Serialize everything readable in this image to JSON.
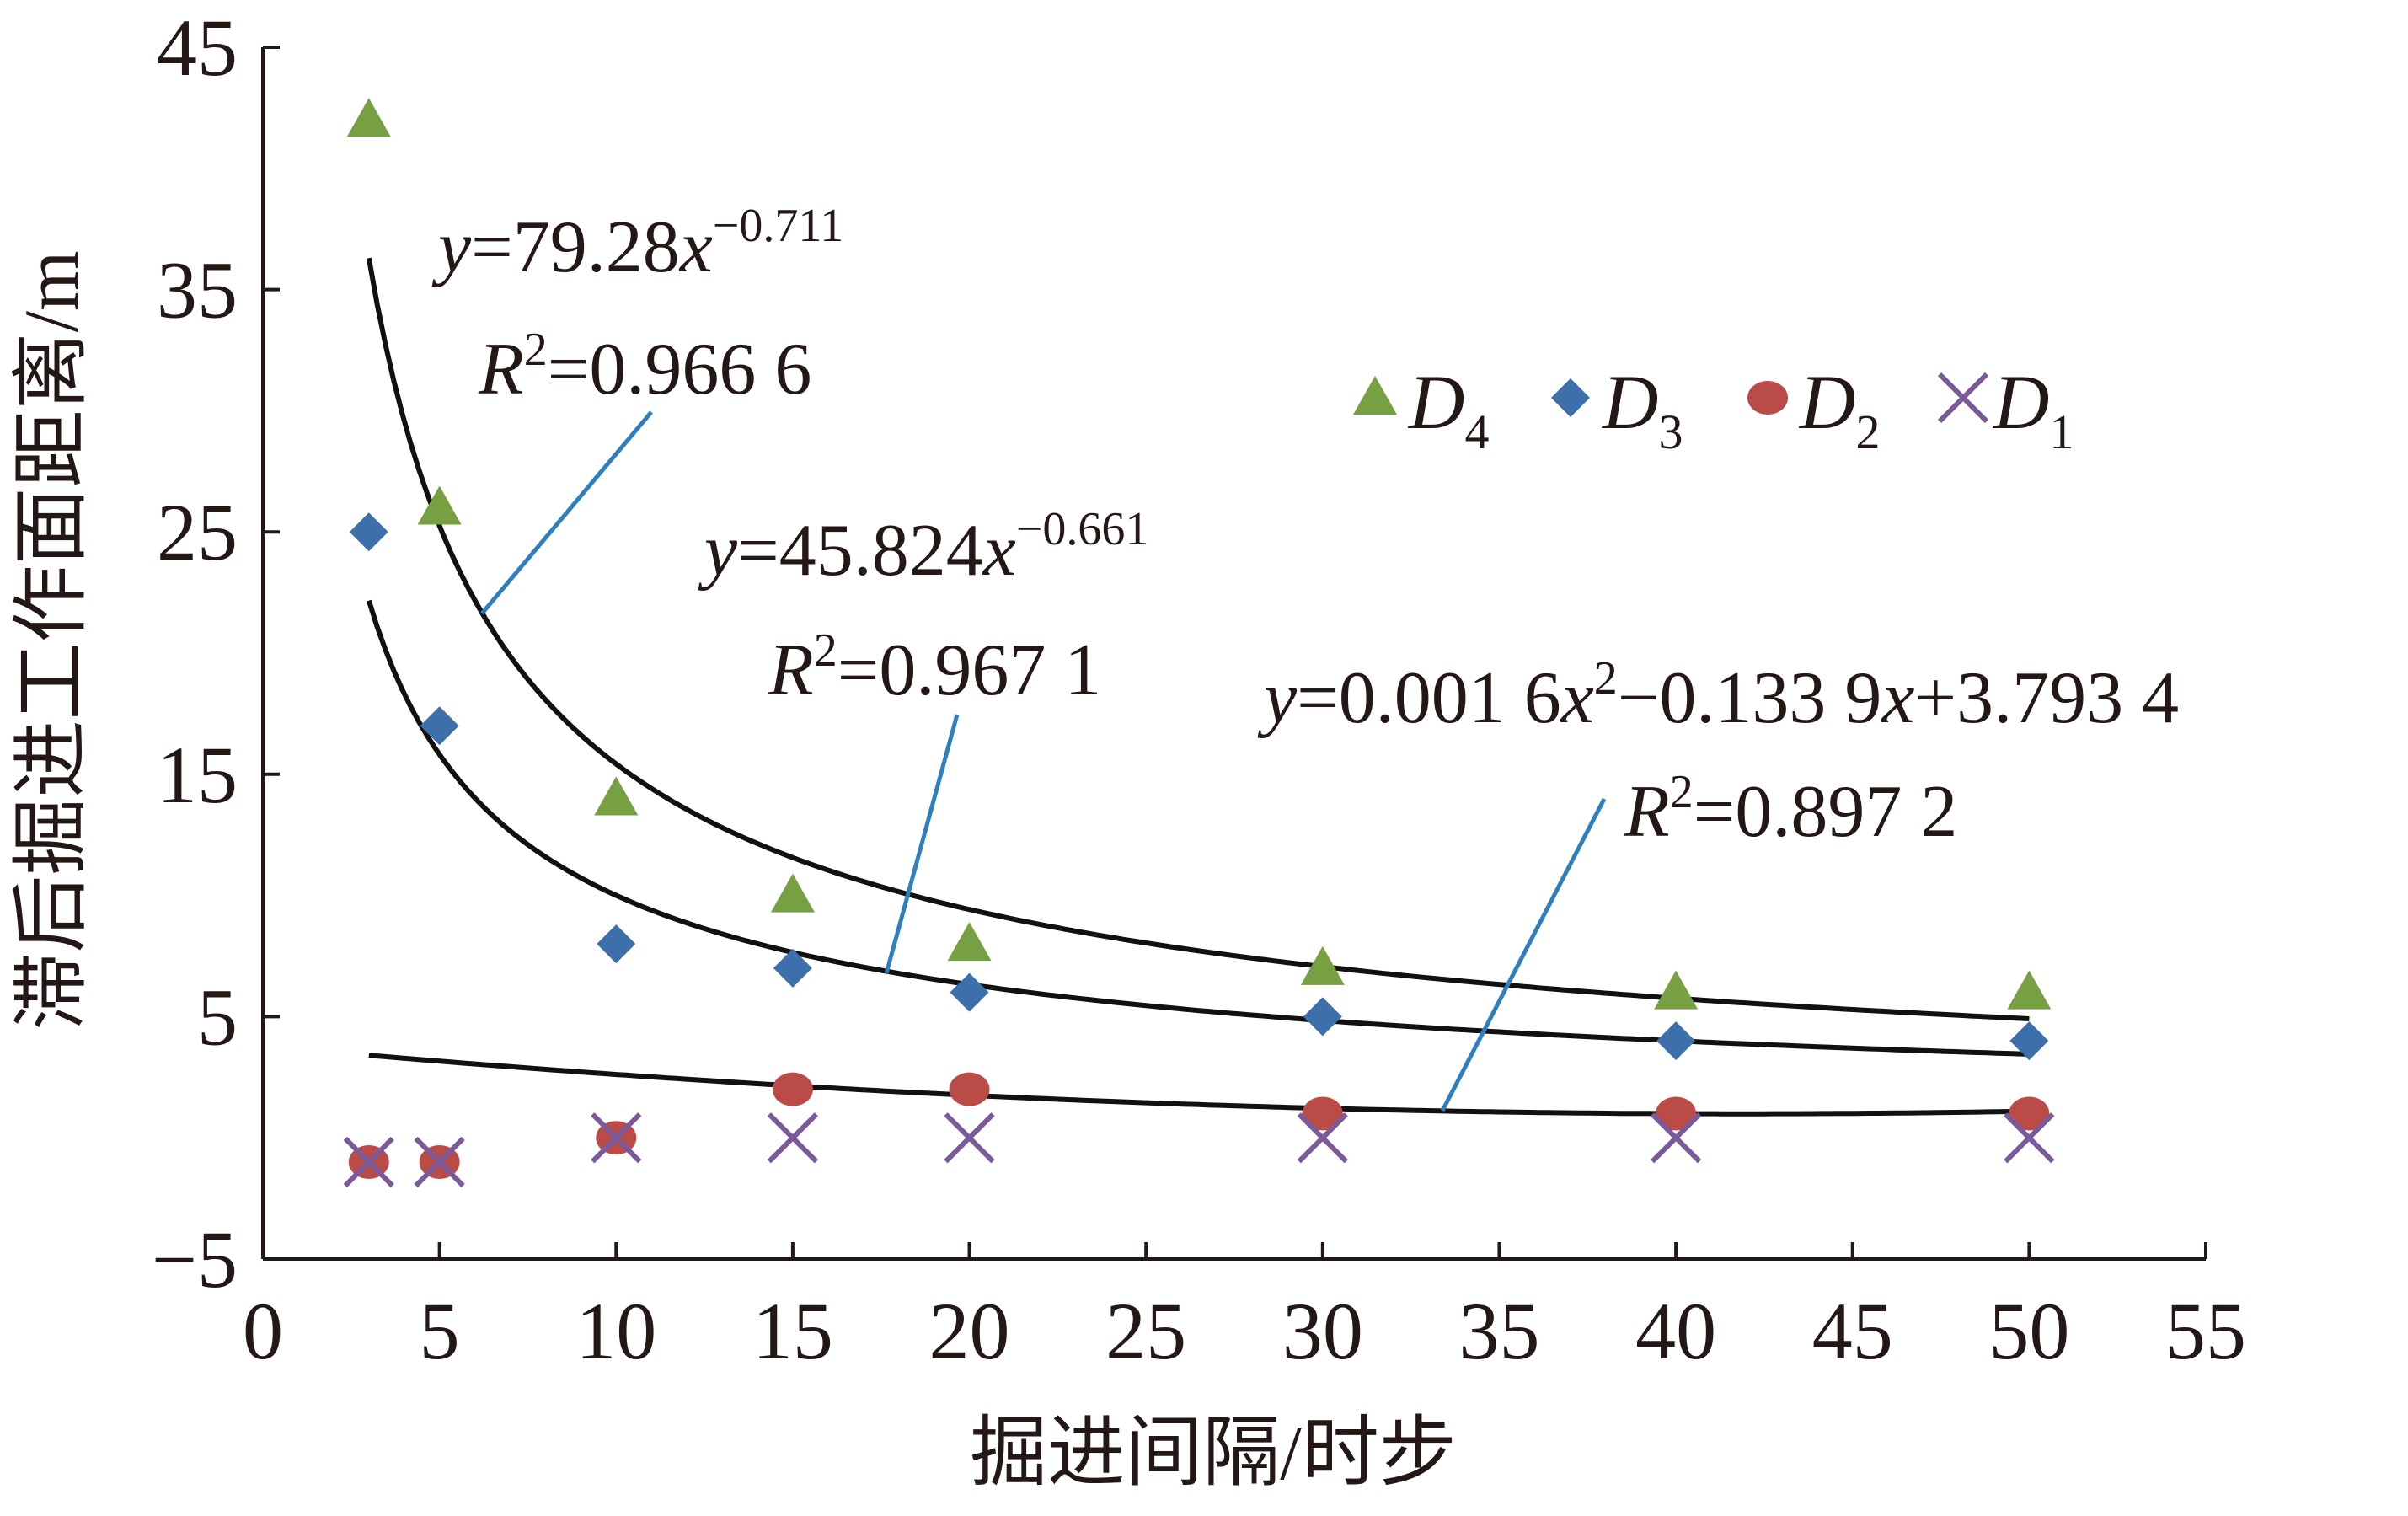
{
  "chart_data": {
    "type": "scatter",
    "xlabel": "掘进间隔/时步",
    "ylabel": "滞后掘进工作面距离/m",
    "xlim": [
      0,
      55
    ],
    "ylim": [
      -5,
      45
    ],
    "xticks": [
      "0",
      "5",
      "10",
      "15",
      "20",
      "25",
      "30",
      "35",
      "40",
      "45",
      "50",
      "55"
    ],
    "yticks": [
      "45",
      "35",
      "25",
      "15",
      "5",
      "−5"
    ],
    "grid": false,
    "legend_position": "top-right",
    "series": [
      {
        "name": "D4",
        "label_main": "D",
        "label_sub": "4",
        "marker": "triangle",
        "color": "#77a043",
        "x": [
          3,
          5,
          10,
          15,
          20,
          30,
          40,
          50
        ],
        "y": [
          42,
          26,
          14,
          10,
          8,
          7,
          6,
          6
        ]
      },
      {
        "name": "D3",
        "label_main": "D",
        "label_sub": "3",
        "marker": "diamond",
        "color": "#3d6fab",
        "x": [
          3,
          5,
          10,
          15,
          20,
          30,
          40,
          50
        ],
        "y": [
          25,
          17,
          8,
          7,
          6,
          5,
          4,
          4
        ]
      },
      {
        "name": "D2",
        "label_main": "D",
        "label_sub": "2",
        "marker": "circle",
        "color": "#bb4b47",
        "x": [
          3,
          5,
          10,
          15,
          20,
          30,
          40,
          50
        ],
        "y": [
          -1,
          -1,
          0,
          2,
          2,
          1,
          1,
          1
        ]
      },
      {
        "name": "D1",
        "label_main": "D",
        "label_sub": "1",
        "marker": "x",
        "color": "#7a5a9a",
        "x": [
          3,
          5,
          10,
          15,
          20,
          30,
          40,
          50
        ],
        "y": [
          -1,
          -1,
          0,
          0,
          0,
          0,
          0,
          0
        ]
      }
    ],
    "fits": [
      {
        "series": "D4",
        "kind": "power",
        "a": 79.28,
        "b": -0.711,
        "x_range": [
          3,
          50
        ],
        "eq_pre": "=79.28",
        "eq_exp": "−0.711",
        "r2": "=0.966 6"
      },
      {
        "series": "D3",
        "kind": "power",
        "a": 45.824,
        "b": -0.661,
        "x_range": [
          3,
          50
        ],
        "eq_pre": "=45.824",
        "eq_exp": "−0.661",
        "r2": "=0.967 1"
      },
      {
        "series": "D2",
        "kind": "poly2",
        "c2": 0.0016,
        "c1": -0.1339,
        "c0": 3.7934,
        "x_range": [
          3,
          50
        ],
        "eq_a": "=0.001 6",
        "eq_b": "−0.133 9",
        "eq_c": "+3.793 4",
        "r2": "=0.897 2"
      }
    ]
  },
  "text": {
    "y": "y",
    "x": "x",
    "R": "R",
    "two": "2"
  }
}
